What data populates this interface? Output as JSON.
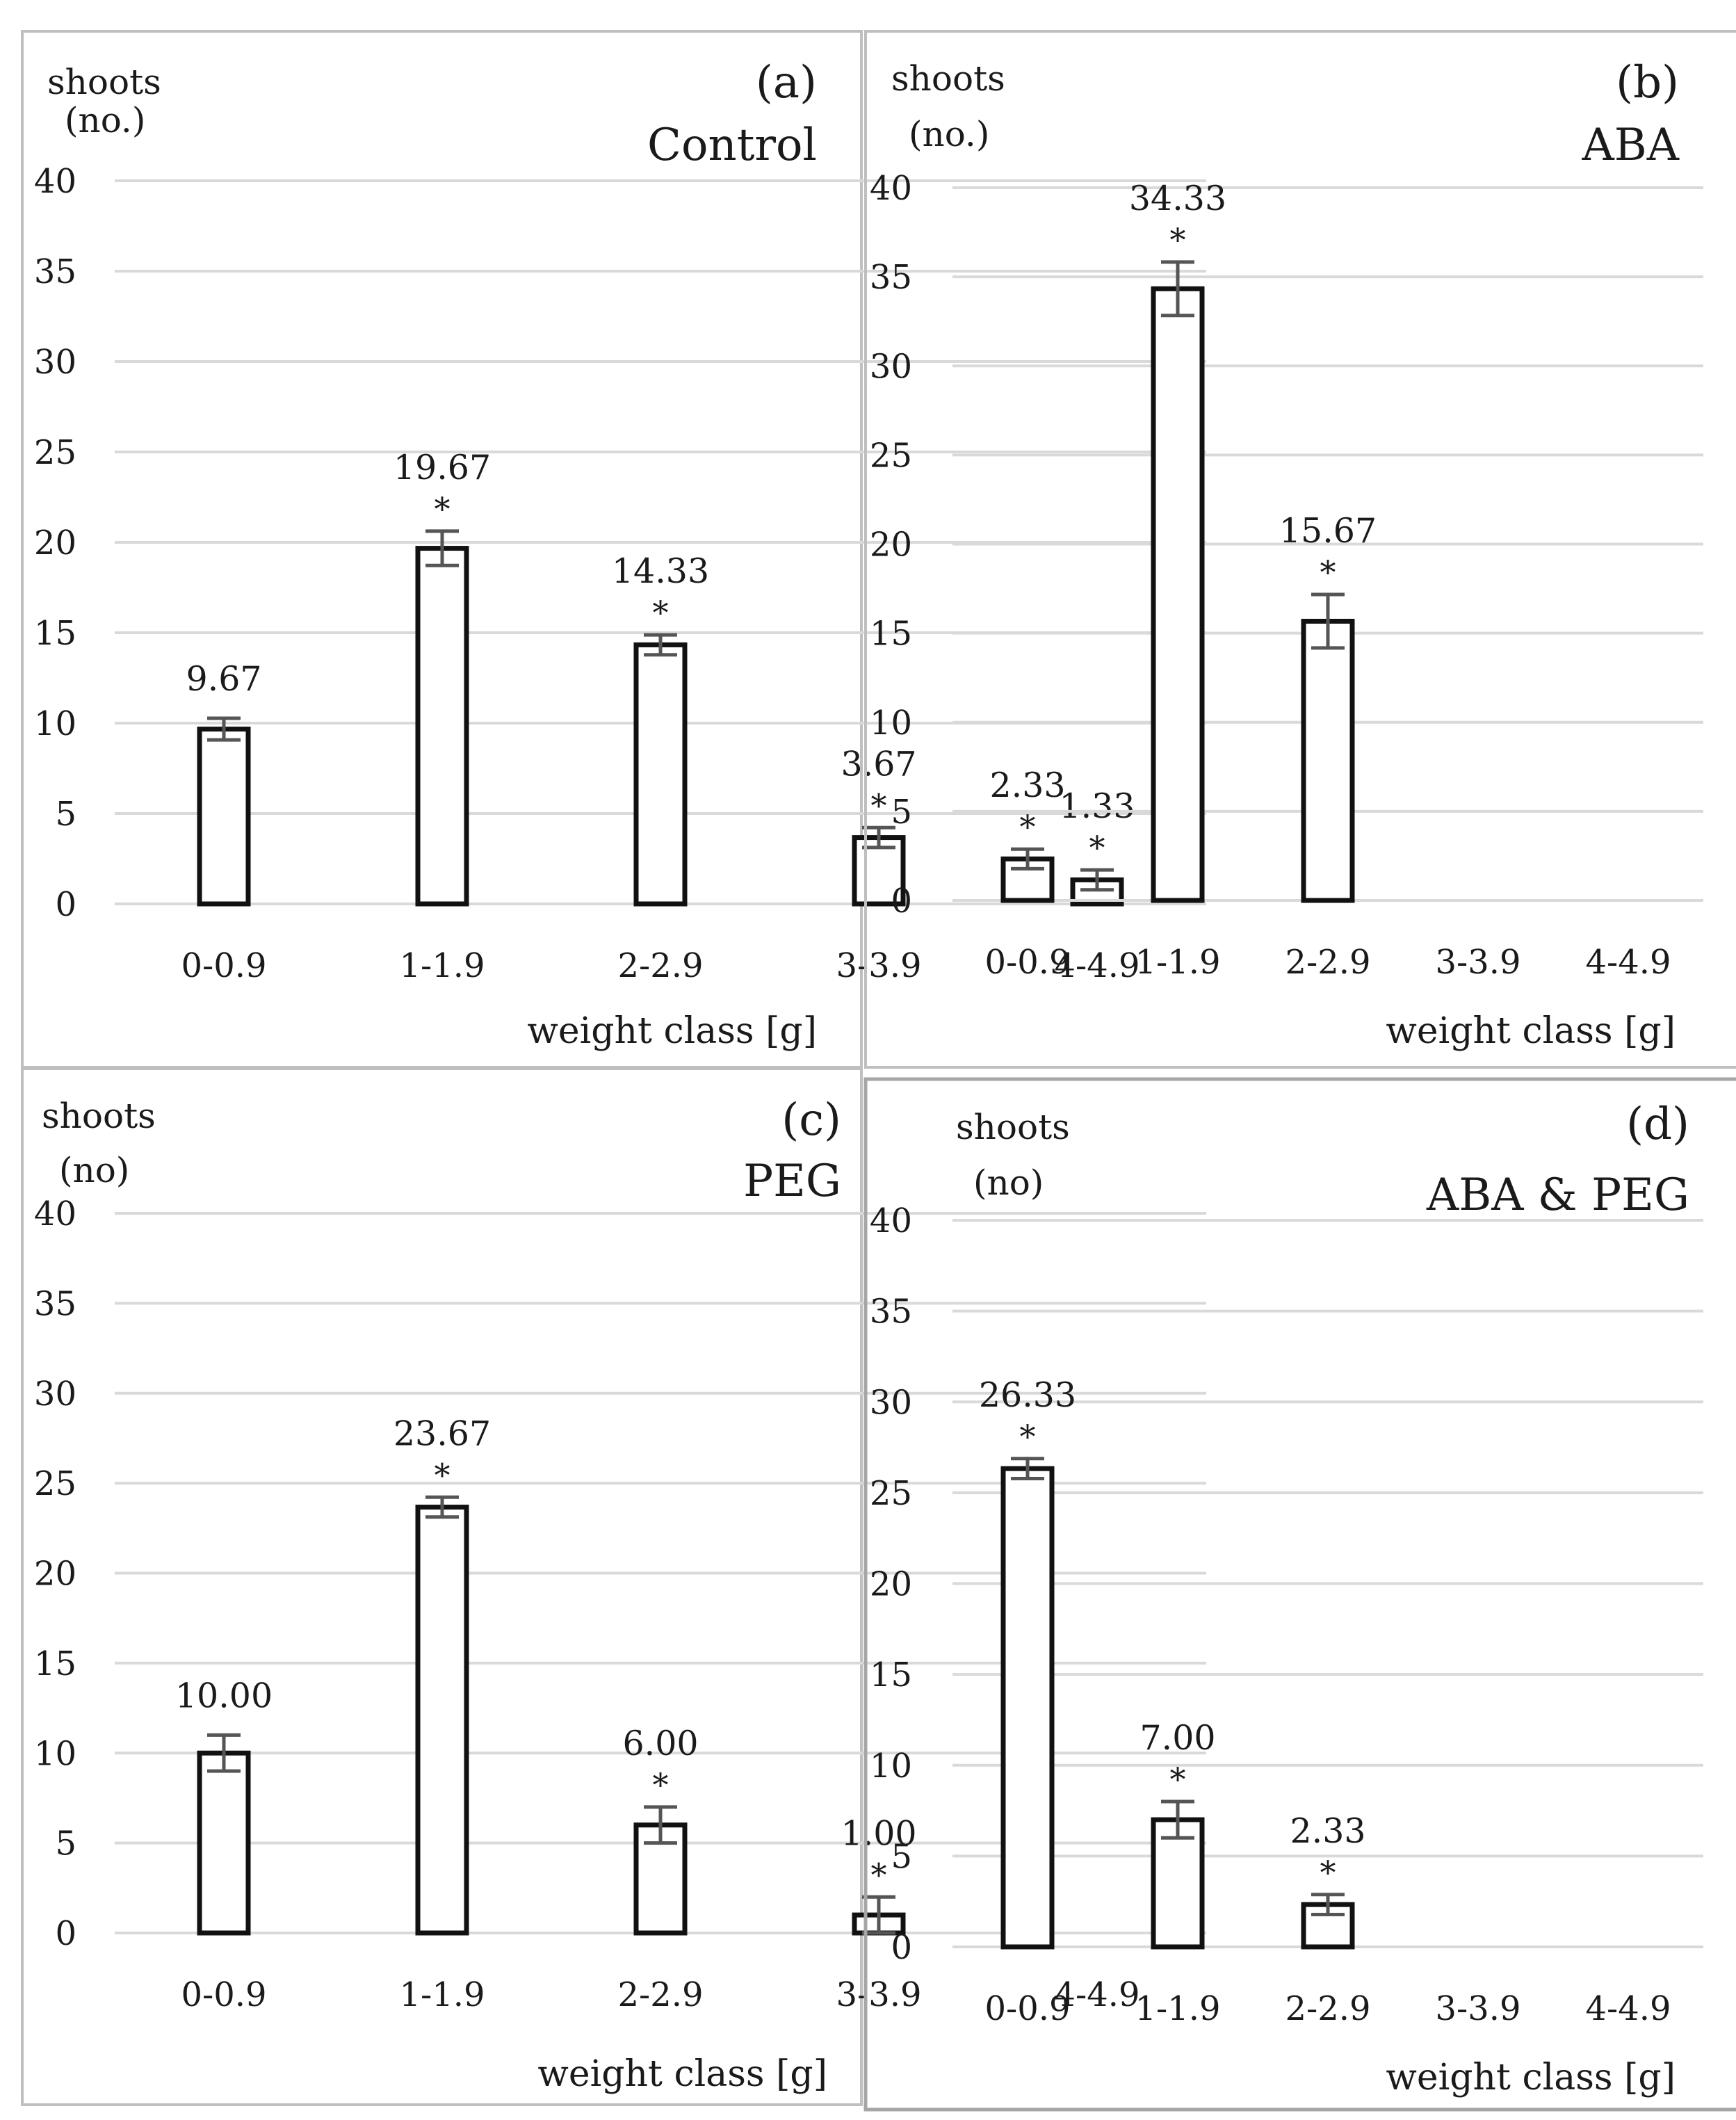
{
  "colors": {
    "background": "#ffffff",
    "bar_fill": "#ffffff",
    "bar_stroke": "#111111",
    "grid": "#d9d9d9",
    "error_bar": "#555555",
    "panel_border": "#bfbfbf",
    "panel_border_highlight": "#a6a6a6",
    "text": "#1a1a1a"
  },
  "chart_data": [
    {
      "type": "bar",
      "panel": "(a)",
      "title": "Control",
      "ylabel": "shoots",
      "yunit": "(no.)",
      "xlabel": "weight class [g]",
      "categories": [
        "0-0.9",
        "1-1.9",
        "2-2.9",
        "3-3.9",
        "4-4.9"
      ],
      "values": [
        9.67,
        19.67,
        14.33,
        3.67,
        1.33
      ],
      "errors": [
        0.6,
        0.95,
        0.55,
        0.55,
        0.55
      ],
      "value_labels": [
        "9.67",
        "19.67",
        "14.33",
        "3.67",
        "1.33"
      ],
      "significance": [
        "",
        "*",
        "*",
        "*",
        "*"
      ],
      "yticks": [
        "0",
        "5",
        "10",
        "15",
        "20",
        "25",
        "30",
        "35",
        "40"
      ],
      "ylim": [
        0,
        40
      ],
      "grid": true
    },
    {
      "type": "bar",
      "panel": "(b)",
      "title": "ABA",
      "ylabel": "shoots",
      "yunit": "(no.)",
      "xlabel": "weight class [g]",
      "categories": [
        "0-0.9",
        "1-1.9",
        "2-2.9",
        "3-3.9",
        "4-4.9"
      ],
      "values": [
        2.33,
        34.33,
        15.67,
        0,
        0
      ],
      "errors": [
        0.55,
        1.5,
        1.5,
        0,
        0
      ],
      "value_labels": [
        "2.33",
        "34.33",
        "15.67",
        "",
        ""
      ],
      "significance": [
        "*",
        "*",
        "*",
        "",
        ""
      ],
      "yticks": [
        "0",
        "5",
        "10",
        "15",
        "20",
        "25",
        "30",
        "35",
        "40"
      ],
      "ylim": [
        0,
        40
      ],
      "grid": true
    },
    {
      "type": "bar",
      "panel": "(c)",
      "title": "PEG",
      "ylabel": "shoots",
      "yunit": "(no)",
      "xlabel": "weight class [g]",
      "categories": [
        "0-0.9",
        "1-1.9",
        "2-2.9",
        "3-3.9",
        "4-4.9"
      ],
      "values": [
        10.0,
        23.67,
        6.0,
        1.0,
        0
      ],
      "errors": [
        1.0,
        0.55,
        1.0,
        1.0,
        0
      ],
      "value_labels": [
        "10.00",
        "23.67",
        "6.00",
        "1.00",
        ""
      ],
      "significance": [
        "",
        "*",
        "*",
        "*",
        ""
      ],
      "yticks": [
        "0",
        "5",
        "10",
        "15",
        "20",
        "25",
        "30",
        "35",
        "40"
      ],
      "ylim": [
        0,
        40
      ],
      "grid": true
    },
    {
      "type": "bar",
      "panel": "(d)",
      "title": "ABA & PEG",
      "ylabel": "shoots",
      "yunit": "(no)",
      "xlabel": "weight class [g]",
      "categories": [
        "0-0.9",
        "1-1.9",
        "2-2.9",
        "3-3.9",
        "4-4.9"
      ],
      "values": [
        26.33,
        7.0,
        2.33,
        0,
        0
      ],
      "errors": [
        0.55,
        1.0,
        0.55,
        0,
        0
      ],
      "value_labels": [
        "26.33",
        "7.00",
        "2.33",
        "",
        ""
      ],
      "significance": [
        "*",
        "*",
        "*",
        "",
        ""
      ],
      "yticks": [
        "0",
        "5",
        "10",
        "15",
        "20",
        "25",
        "30",
        "35",
        "40"
      ],
      "ylim": [
        0,
        40
      ],
      "grid": true
    }
  ]
}
